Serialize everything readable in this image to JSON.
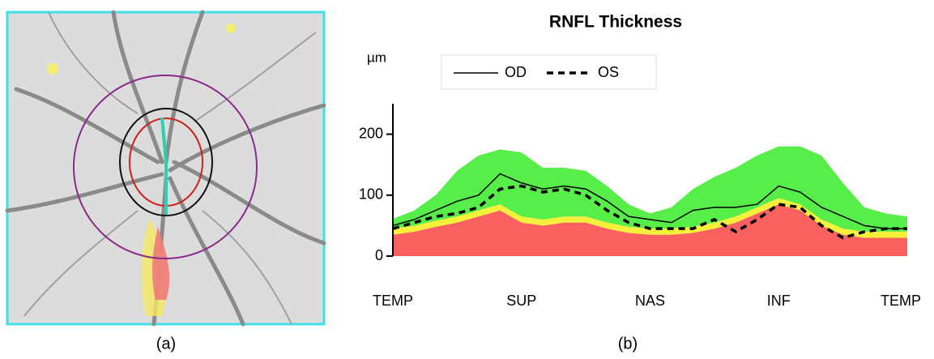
{
  "chart_data": {
    "type": "area-profile",
    "title": "RNFL Thickness",
    "y_label": "µm",
    "panel_labels": [
      "(a)",
      "(b)"
    ],
    "x": [
      0,
      15,
      30,
      45,
      60,
      75,
      90,
      105,
      120,
      135,
      150,
      165,
      180,
      195,
      210,
      225,
      240,
      255,
      270,
      285,
      300,
      315,
      330,
      345,
      360
    ],
    "xlim": [
      0,
      360
    ],
    "xticks": [
      {
        "value": 0,
        "label": "TEMP"
      },
      {
        "value": 90,
        "label": "SUP"
      },
      {
        "value": 180,
        "label": "NAS"
      },
      {
        "value": 270,
        "label": "INF"
      },
      {
        "value": 360,
        "label": "TEMP"
      }
    ],
    "ylim": [
      0,
      250
    ],
    "yticks": [
      0,
      100,
      200
    ],
    "bands": [
      {
        "color": "#f96060",
        "values": [
          35,
          40,
          48,
          55,
          65,
          75,
          55,
          50,
          55,
          55,
          45,
          38,
          35,
          35,
          38,
          45,
          55,
          70,
          85,
          75,
          50,
          35,
          30,
          30,
          30
        ]
      },
      {
        "color": "#f5f03a",
        "values": [
          10,
          10,
          10,
          10,
          10,
          10,
          10,
          10,
          10,
          10,
          10,
          10,
          10,
          10,
          10,
          10,
          10,
          10,
          10,
          10,
          10,
          10,
          10,
          10,
          10
        ]
      },
      {
        "color": "#58ee4a",
        "values": [
          16,
          25,
          42,
          75,
          90,
          90,
          105,
          85,
          80,
          75,
          60,
          37,
          25,
          35,
          62,
          75,
          80,
          85,
          85,
          95,
          105,
          75,
          40,
          30,
          25
        ]
      }
    ],
    "series": [
      {
        "name": "OD",
        "color": "#000000",
        "dash": "solid",
        "values": [
          50,
          60,
          75,
          90,
          100,
          135,
          120,
          110,
          115,
          110,
          90,
          65,
          60,
          55,
          75,
          80,
          80,
          85,
          115,
          105,
          80,
          65,
          50,
          45,
          45
        ]
      },
      {
        "name": "OS",
        "color": "#000000",
        "dash": "dashed",
        "values": [
          45,
          55,
          65,
          70,
          80,
          110,
          115,
          105,
          110,
          100,
          75,
          55,
          45,
          45,
          45,
          60,
          40,
          60,
          85,
          80,
          50,
          30,
          40,
          45,
          45
        ]
      }
    ]
  }
}
